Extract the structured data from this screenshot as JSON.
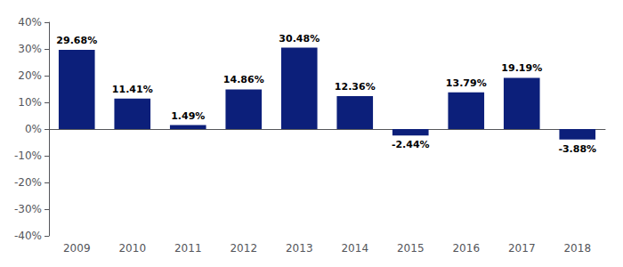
{
  "chart_data": {
    "type": "bar",
    "categories": [
      "2009",
      "2010",
      "2011",
      "2012",
      "2013",
      "2014",
      "2015",
      "2016",
      "2017",
      "2018"
    ],
    "values": [
      29.68,
      11.41,
      1.49,
      14.86,
      30.48,
      12.36,
      -2.44,
      13.79,
      19.19,
      -3.88
    ],
    "value_labels": [
      "29.68%",
      "11.41%",
      "1.49%",
      "14.86%",
      "30.48%",
      "12.36%",
      "-2.44%",
      "13.79%",
      "19.19%",
      "-3.88%"
    ],
    "data_labels": true,
    "color": "#0C1F7A",
    "ylim": [
      -40,
      40
    ],
    "yticks": [
      {
        "value": -40,
        "label": "-40%"
      },
      {
        "value": -30,
        "label": "-30%"
      },
      {
        "value": -20,
        "label": "-20%"
      },
      {
        "value": -10,
        "label": "-10%"
      },
      {
        "value": 0,
        "label": "0%"
      },
      {
        "value": 10,
        "label": "10%"
      },
      {
        "value": 20,
        "label": "20%"
      },
      {
        "value": 30,
        "label": "30%"
      },
      {
        "value": 40,
        "label": "40%"
      }
    ],
    "grid": false
  }
}
